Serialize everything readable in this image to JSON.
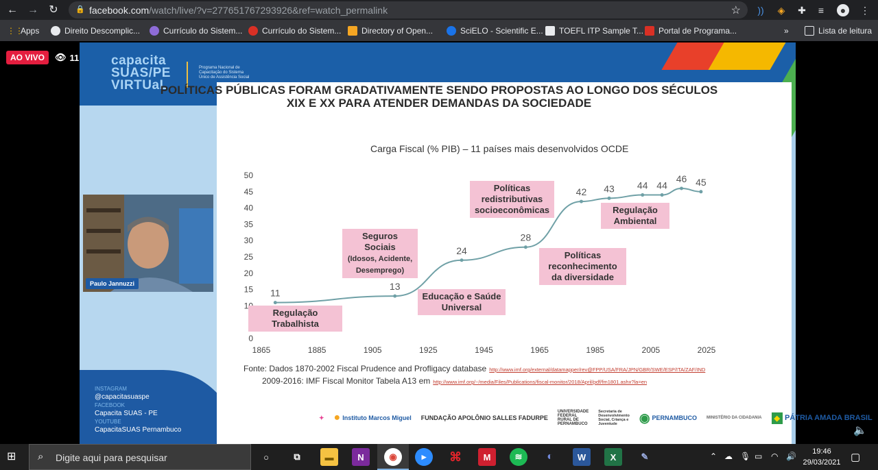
{
  "browser": {
    "url_host": "facebook.com",
    "url_path": "/watch/live/?v=277651767293926&ref=watch_permalink",
    "bookmarks": [
      {
        "label": "Apps",
        "color": "#f4b400"
      },
      {
        "label": "Direito Descomplic...",
        "color": "#e8eaed"
      },
      {
        "label": "Currículo do Sistem...",
        "color": "#8e6cd8"
      },
      {
        "label": "Currículo do Sistem...",
        "color": "#d93025"
      },
      {
        "label": "Directory of Open...",
        "color": "#f5a623"
      },
      {
        "label": "SciELO - Scientific E...",
        "color": "#1a73e8"
      },
      {
        "label": "TOEFL ITP Sample T...",
        "color": "#e8eaed"
      },
      {
        "label": "Portal de Programa...",
        "color": "#d93025"
      }
    ],
    "overflow_label": "»",
    "reading_list_label": "Lista de leitura"
  },
  "live": {
    "badge": "AO VIVO",
    "viewers": "11"
  },
  "slide": {
    "logo_line1": "capacita",
    "logo_line2": "SUAS/PE",
    "logo_line3": "VIRTUaL",
    "logo_sub": "Programa Nacional de Capacitação do Sistema Único de Assistência Social",
    "title": "POLÍTICAS PÚBLICAS FORAM GRADATIVAMENTE SENDO PROPOSTAS AO LONGO DOS SÉCULOS XIX E XX PARA ATENDER DEMANDAS DA SOCIEDADE",
    "chart_title": "Carga Fiscal (% PIB) – 11 países mais desenvolvidos OCDE",
    "annotations": {
      "regulacao_trabalhista": "Regulação Trabalhista",
      "seguros_sociais": "Seguros Sociais",
      "seguros_sociais_detail": "(Idosos, Acidente, Desemprego)",
      "educacao_saude": "Educação e Saúde Universal",
      "politicas_redistributivas": "Políticas redistributivas socioeconômicas",
      "politicas_reconhecimento": "Políticas reconhecimento da diversidade",
      "regulacao_ambiental": "Regulação Ambiental"
    },
    "source_line1": "Fonte: Dados 1870-2002 Fiscal Prudence and Profligacy database",
    "source_link1": "http://www.imf.org/external/datamapper/rev@FPP/USA/FRA/JPN/GBR/SWE/ESP/ITA/ZAF/IND",
    "source_line2": "2009-2016: IMF Fiscal Monitor Tabela A13 em",
    "source_link2": "http://www.imf.org/~/media/Files/Publications/fiscal-monitor/2018/April/pdf/fm1801.ashx?la=en",
    "social": {
      "instagram_label": "INSTAGRAM",
      "instagram": "@capacitasuaspe",
      "facebook_label": "FACEBOOK",
      "facebook": "Capacita SUAS - PE",
      "youtube_label": "YOUTUBE",
      "youtube": "CapacitaSUAS Pernambuco"
    },
    "sponsors": [
      "Instituto Marcos Miguel",
      "FUNDAÇÃO APOLÔNIO SALLES FADURPE",
      "UNIVERSIDADE FEDERAL RURAL DE PERNAMBUCO",
      "Secretaria de Desenvolvimento Social, Criança e Juventude",
      "PERNAMBUCO",
      "MINISTÉRIO DA CIDADANIA",
      "PÁTRIA AMADA BRASIL"
    ]
  },
  "webcam": {
    "name": "Paulo Jannuzzi"
  },
  "chart_data": {
    "type": "line",
    "title": "Carga Fiscal (% PIB) – 11 países mais desenvolvidos OCDE",
    "xlabel": "",
    "ylabel": "",
    "xlim": [
      1865,
      2025
    ],
    "ylim": [
      0,
      50
    ],
    "xticks": [
      1865,
      1885,
      1905,
      1925,
      1945,
      1965,
      1985,
      2005,
      2025
    ],
    "yticks": [
      0,
      5,
      10,
      15,
      20,
      25,
      30,
      35,
      40,
      45,
      50
    ],
    "grid": false,
    "series": [
      {
        "color": "#6fa0a6",
        "points": [
          {
            "x": 1870,
            "y": 11,
            "label": "11"
          },
          {
            "x": 1913,
            "y": 13,
            "label": "13"
          },
          {
            "x": 1937,
            "y": 24,
            "label": "24"
          },
          {
            "x": 1960,
            "y": 28,
            "label": "28"
          },
          {
            "x": 1980,
            "y": 42,
            "label": "42"
          },
          {
            "x": 1990,
            "y": 43,
            "label": "43"
          },
          {
            "x": 2002,
            "y": 44,
            "label": "44"
          },
          {
            "x": 2009,
            "y": 44,
            "label": "44"
          },
          {
            "x": 2016,
            "y": 46,
            "label": "46"
          },
          {
            "x": 2023,
            "y": 45,
            "label": "45"
          }
        ]
      }
    ]
  },
  "taskbar": {
    "search_placeholder": "Digite aqui para pesquisar",
    "time": "19:46",
    "date": "29/03/2021"
  }
}
